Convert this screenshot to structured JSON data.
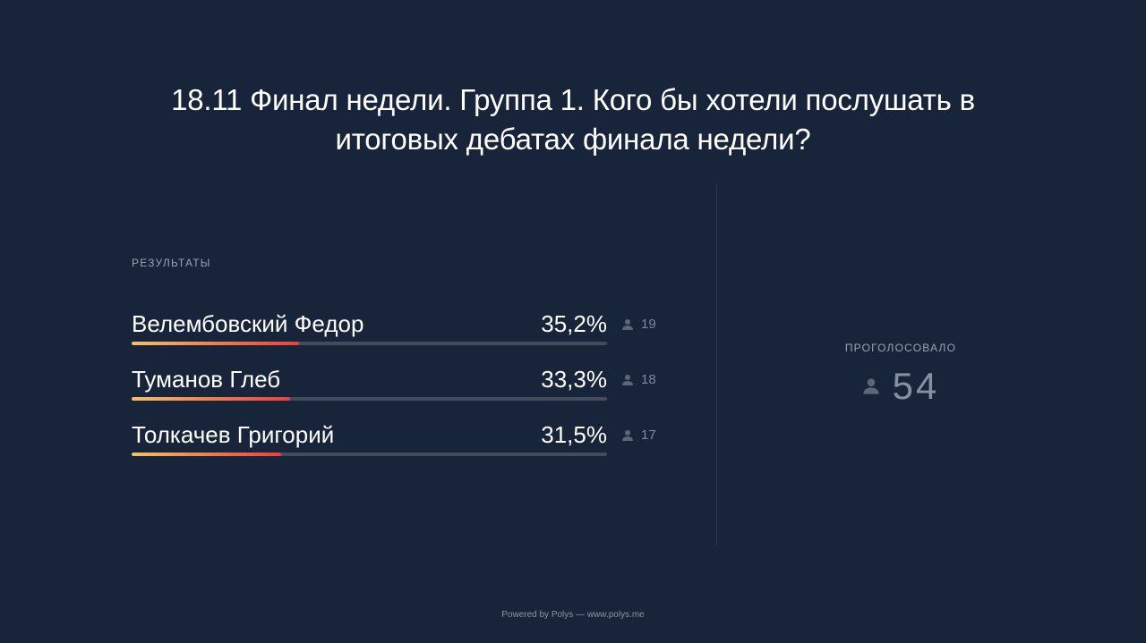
{
  "poll": {
    "question": "18.11 Финал недели. Группа 1. Кого бы хотели послушать в итоговых дебатах финала недели?",
    "results_heading": "РЕЗУЛЬТАТЫ",
    "options": [
      {
        "name": "Велембовский Федор",
        "percent_label": "35,2%",
        "percent": 35.2,
        "votes": "19"
      },
      {
        "name": "Туманов Глеб",
        "percent_label": "33,3%",
        "percent": 33.3,
        "votes": "18"
      },
      {
        "name": "Толкачев Григорий",
        "percent_label": "31,5%",
        "percent": 31.5,
        "votes": "17"
      }
    ],
    "total_label": "ПРОГОЛОСОВАЛО",
    "total_votes": "54"
  },
  "icons": {
    "voter": "person-icon"
  },
  "colors": {
    "background": "#18243a",
    "bar_track": "#434c5d",
    "bar_gradient_start": "#f5c16b",
    "bar_gradient_end": "#e8423f"
  },
  "footer": {
    "text": "Powered by Polys — www.polys.me"
  }
}
